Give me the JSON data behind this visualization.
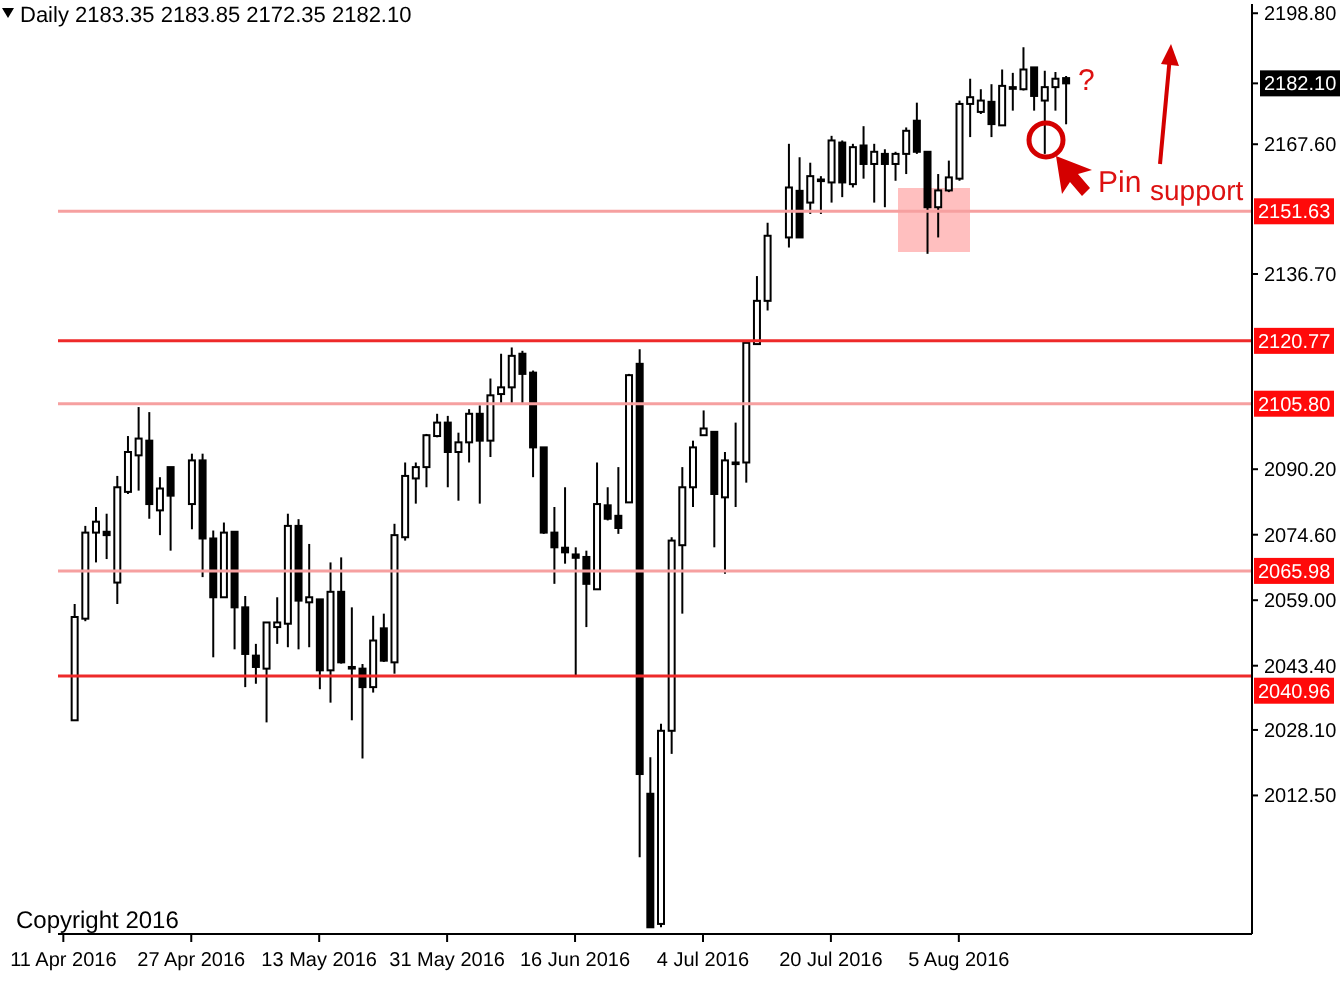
{
  "chart_data": {
    "type": "candlestick",
    "title": "Daily 2183.35 2183.85 2172.35 2182.10",
    "categories": [
      "11 Apr 2016",
      null,
      null,
      null,
      null,
      null,
      null,
      null,
      null,
      null,
      null,
      null,
      "27 Apr 2016",
      null,
      null,
      null,
      null,
      null,
      null,
      null,
      null,
      null,
      null,
      null,
      "13 May 2016",
      null,
      null,
      null,
      null,
      null,
      null,
      null,
      null,
      null,
      null,
      null,
      "31 May 2016",
      null,
      null,
      null,
      null,
      null,
      null,
      null,
      null,
      null,
      null,
      null,
      "16 Jun 2016",
      null,
      null,
      null,
      null,
      null,
      null,
      null,
      null,
      null,
      null,
      null,
      "4 Jul 2016",
      null,
      null,
      null,
      null,
      null,
      null,
      null,
      null,
      null,
      null,
      null,
      "20 Jul 2016",
      null,
      null,
      null,
      null,
      null,
      null,
      null,
      null,
      null,
      null,
      null,
      "5 Aug 2016",
      null,
      null,
      null,
      null,
      null,
      null,
      null,
      null,
      null,
      null,
      null,
      null,
      null,
      null,
      null,
      null,
      null,
      null,
      null,
      null,
      null,
      null,
      null,
      null,
      null,
      null,
      null
    ],
    "ohlc": [
      null,
      [
        2030.4,
        2058.1,
        2030.4,
        2055.0
      ],
      [
        2054.6,
        2076.7,
        2054.0,
        2075.1
      ],
      [
        2075.1,
        2081.2,
        2068.0,
        2077.7
      ],
      [
        2075.3,
        2079.6,
        2068.8,
        2074.5
      ],
      [
        2063.2,
        2088.6,
        2058.1,
        2085.9
      ],
      [
        2084.8,
        2098.1,
        2084.3,
        2094.3
      ],
      [
        2093.5,
        2105.0,
        2085.1,
        2097.5
      ],
      [
        2097.0,
        2103.8,
        2078.4,
        2081.9
      ],
      [
        2080.4,
        2088.3,
        2074.5,
        2085.6
      ],
      [
        2090.7,
        2090.7,
        2070.8,
        2083.9
      ],
      null,
      [
        2081.9,
        2093.9,
        2075.9,
        2092.3
      ],
      [
        2092.3,
        2093.9,
        2064.5,
        2073.7
      ],
      [
        2073.7,
        2075.6,
        2045.4,
        2059.7
      ],
      [
        2059.7,
        2077.5,
        2059.7,
        2075.1
      ],
      [
        2075.3,
        2075.3,
        2047.3,
        2057.3
      ],
      [
        2057.3,
        2060.0,
        2038.3,
        2046.2
      ],
      [
        2045.8,
        2048.6,
        2039.1,
        2043.1
      ],
      [
        2042.7,
        2053.7,
        2029.9,
        2053.7
      ],
      [
        2052.6,
        2059.7,
        2048.6,
        2053.7
      ],
      [
        2053.4,
        2079.6,
        2047.8,
        2076.7
      ],
      [
        2076.7,
        2078.3,
        2047.3,
        2058.9
      ],
      [
        2058.5,
        2072.4,
        2047.8,
        2059.7
      ],
      [
        2059.2,
        2059.2,
        2037.8,
        2042.3
      ],
      [
        2042.3,
        2068.0,
        2034.6,
        2061.0
      ],
      [
        2061.0,
        2069.2,
        2043.9,
        2044.2
      ],
      [
        2043.1,
        2057.3,
        2030.4,
        2043.1
      ],
      [
        2042.7,
        2043.8,
        2021.3,
        2038.3
      ],
      [
        2038.3,
        2055.3,
        2037.0,
        2049.4
      ],
      [
        2052.3,
        2055.8,
        2044.3,
        2044.6
      ],
      [
        2044.2,
        2077.2,
        2041.5,
        2074.5
      ],
      [
        2074.0,
        2091.8,
        2073.2,
        2088.6
      ],
      [
        2088.0,
        2091.8,
        2082.0,
        2090.7
      ],
      [
        2090.7,
        2098.6,
        2085.9,
        2098.3
      ],
      [
        2098.1,
        2103.4,
        2097.8,
        2101.3
      ],
      [
        2101.3,
        2102.9,
        2085.9,
        2094.3
      ],
      [
        2094.3,
        2098.9,
        2082.7,
        2096.6
      ],
      [
        2096.6,
        2104.5,
        2091.8,
        2103.4
      ],
      [
        2103.4,
        2105.4,
        2082.0,
        2097.0
      ],
      [
        2097.0,
        2111.8,
        2093.1,
        2107.8
      ],
      [
        2108.1,
        2117.7,
        2105.7,
        2109.7
      ],
      [
        2109.7,
        2119.2,
        2105.7,
        2117.2
      ],
      [
        2117.7,
        2118.4,
        2105.7,
        2112.9
      ],
      [
        2113.2,
        2113.7,
        2088.3,
        2095.4
      ],
      [
        2095.4,
        2095.4,
        2074.8,
        2075.1
      ],
      [
        2075.1,
        2081.2,
        2062.9,
        2071.6
      ],
      [
        2071.5,
        2085.9,
        2067.7,
        2070.4
      ],
      [
        2069.9,
        2071.6,
        2040.7,
        2069.1
      ],
      [
        2069.3,
        2070.8,
        2052.6,
        2062.9
      ],
      [
        2061.6,
        2091.8,
        2061.6,
        2081.9
      ],
      [
        2081.6,
        2085.9,
        2078.0,
        2078.4
      ],
      [
        2079.1,
        2090.7,
        2074.8,
        2076.2
      ],
      [
        2082.3,
        2112.9,
        2082.3,
        2112.6
      ],
      [
        2115.3,
        2118.8,
        1997.8,
        2017.6
      ],
      [
        2012.9,
        2021.6,
        1981.1,
        1981.1
      ],
      [
        1981.9,
        2029.6,
        1981.1,
        2027.9
      ],
      [
        2027.9,
        2074.0,
        2022.4,
        2073.2
      ],
      [
        2072.1,
        2090.7,
        2055.8,
        2085.9
      ],
      [
        2085.9,
        2097.0,
        2081.2,
        2095.4
      ],
      [
        2098.3,
        2104.2,
        2098.3,
        2099.9
      ],
      [
        2099.1,
        2099.1,
        2071.6,
        2084.3
      ],
      [
        2083.5,
        2094.3,
        2065.3,
        2092.3
      ],
      [
        2091.8,
        2101.3,
        2081.2,
        2091.8
      ],
      [
        2091.8,
        2120.3,
        2087.0,
        2120.3
      ],
      [
        2120.0,
        2136.2,
        2120.0,
        2130.3
      ],
      [
        2130.3,
        2148.9,
        2128.0,
        2145.8
      ],
      null,
      [
        2145.4,
        2167.7,
        2143.0,
        2157.3
      ],
      [
        2156.5,
        2164.5,
        2145.4,
        2145.4
      ],
      [
        2153.7,
        2163.2,
        2151.0,
        2160.0
      ],
      [
        2159.2,
        2160.0,
        2151.0,
        2158.9
      ],
      [
        2158.5,
        2169.6,
        2153.7,
        2168.5
      ],
      [
        2168.0,
        2168.5,
        2155.0,
        2158.5
      ],
      [
        2158.1,
        2167.7,
        2157.3,
        2166.9
      ],
      [
        2167.3,
        2171.9,
        2159.4,
        2162.9
      ],
      [
        2162.9,
        2167.7,
        2153.7,
        2165.8
      ],
      [
        2165.3,
        2166.4,
        2152.6,
        2162.9
      ],
      [
        2162.9,
        2165.8,
        2158.9,
        2165.3
      ],
      [
        2165.3,
        2171.6,
        2160.5,
        2170.8
      ],
      [
        2173.2,
        2177.5,
        2165.3,
        2165.8
      ],
      [
        2165.8,
        2165.8,
        2141.5,
        2152.6
      ],
      [
        2152.6,
        2160.5,
        2145.4,
        2156.6
      ],
      [
        2156.6,
        2163.7,
        2156.2,
        2159.7
      ],
      [
        2159.4,
        2178.0,
        2158.9,
        2177.2
      ],
      [
        2177.2,
        2183.2,
        2169.3,
        2178.8
      ],
      [
        2175.3,
        2180.7,
        2174.8,
        2178.0
      ],
      [
        2177.7,
        2181.9,
        2169.3,
        2172.4
      ],
      [
        2172.1,
        2185.4,
        2172.1,
        2181.5
      ],
      [
        2181.2,
        2184.6,
        2175.6,
        2180.8
      ],
      [
        2180.7,
        2190.7,
        2180.4,
        2185.4
      ],
      [
        2185.9,
        2185.9,
        2175.6,
        2179.1
      ],
      [
        2178.0,
        2185.1,
        2165.3,
        2181.2
      ],
      [
        2181.2,
        2184.8,
        2175.6,
        2183.2
      ],
      [
        2183.35,
        2183.85,
        2172.35,
        2182.1
      ],
      null,
      null,
      null,
      null,
      null,
      null,
      null,
      null,
      null,
      null,
      null,
      null,
      null,
      null,
      null,
      null,
      null
    ],
    "color": "#000000",
    "ylim": [
      1979.5,
      2201
    ],
    "yticks": [
      {
        "value": 2198.8,
        "label": "2198.80"
      },
      {
        "value": 2182.1,
        "label": "2182.10"
      },
      {
        "value": 2167.6,
        "label": "2167.60"
      },
      {
        "value": 2136.7,
        "label": "2136.70"
      },
      {
        "value": 2090.2,
        "label": "2090.20"
      },
      {
        "value": 2074.6,
        "label": "2074.60"
      },
      {
        "value": 2059,
        "label": "2059.00"
      },
      {
        "value": 2043.4,
        "label": "2043.40"
      },
      {
        "value": 2028.1,
        "label": "2028.10"
      },
      {
        "value": 2012.5,
        "label": "2012.50"
      }
    ],
    "ref_lines": [
      {
        "axis": "y",
        "value": 2151.63,
        "label": "2151.63",
        "color": "#f6a0a0"
      },
      {
        "axis": "y",
        "value": 2120.77,
        "label": "2120.77",
        "color": "#ee2a2a"
      },
      {
        "axis": "y",
        "value": 2105.8,
        "label": "2105.80",
        "color": "#f6a0a0"
      },
      {
        "axis": "y",
        "value": 2065.98,
        "label": "2065.98",
        "color": "#f6a0a0"
      },
      {
        "axis": "y",
        "value": 2040.96,
        "label": "2040.96",
        "color": "#ee2a2a"
      }
    ],
    "annotations": [
      "support",
      "Pin",
      "?",
      "Copyright 2016"
    ]
  }
}
